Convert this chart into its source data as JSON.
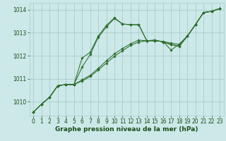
{
  "bg_color": "#cce8e8",
  "grid_color": "#aacccc",
  "line_color": "#2d6e2d",
  "marker_color": "#2d6e2d",
  "xlabel": "Graphe pression niveau de la mer (hPa)",
  "xlabel_color": "#1a4d1a",
  "xlabel_fontsize": 6.5,
  "tick_color": "#1a4d1a",
  "tick_fontsize": 5.5,
  "ylim": [
    1009.4,
    1014.3
  ],
  "xlim": [
    -0.5,
    23.5
  ],
  "yticks": [
    1010,
    1011,
    1012,
    1013,
    1014
  ],
  "xticks": [
    0,
    1,
    2,
    3,
    4,
    5,
    6,
    7,
    8,
    9,
    10,
    11,
    12,
    13,
    14,
    15,
    16,
    17,
    18,
    19,
    20,
    21,
    22,
    23
  ],
  "series": [
    {
      "x": [
        0,
        1,
        2,
        3,
        4,
        5,
        6,
        7,
        8,
        9,
        10,
        11,
        12,
        13,
        14,
        15,
        16,
        17,
        18,
        19,
        20,
        21,
        22,
        23
      ],
      "y": [
        1009.55,
        1009.9,
        1010.2,
        1010.7,
        1010.75,
        1010.75,
        1011.5,
        1012.05,
        1012.8,
        1013.25,
        1013.62,
        1013.38,
        1013.35,
        1013.35,
        1012.65,
        1012.65,
        1012.62,
        1012.25,
        1012.5,
        1012.85,
        1013.35,
        1013.88,
        1013.93,
        1014.05
      ]
    },
    {
      "x": [
        0,
        1,
        2,
        3,
        4,
        5,
        6,
        7,
        8,
        9,
        10,
        11,
        12,
        13,
        14,
        15,
        16,
        17,
        18,
        19,
        20,
        21,
        22,
        23
      ],
      "y": [
        1009.55,
        1009.9,
        1010.2,
        1010.7,
        1010.75,
        1010.75,
        1011.9,
        1012.15,
        1012.85,
        1013.32,
        1013.65,
        1013.38,
        1013.35,
        1013.35,
        1012.65,
        1012.65,
        1012.62,
        1012.55,
        1012.5,
        1012.85,
        1013.35,
        1013.88,
        1013.93,
        1014.05
      ]
    },
    {
      "x": [
        0,
        1,
        2,
        3,
        4,
        5,
        6,
        7,
        8,
        9,
        10,
        11,
        12,
        13,
        14,
        15,
        16,
        17,
        18,
        19,
        20,
        21,
        22,
        23
      ],
      "y": [
        1009.55,
        1009.9,
        1010.2,
        1010.7,
        1010.75,
        1010.75,
        1010.95,
        1011.15,
        1011.45,
        1011.78,
        1012.08,
        1012.32,
        1012.52,
        1012.68,
        1012.65,
        1012.68,
        1012.6,
        1012.5,
        1012.42,
        1012.85,
        1013.35,
        1013.88,
        1013.93,
        1014.05
      ]
    },
    {
      "x": [
        0,
        1,
        2,
        3,
        4,
        5,
        6,
        7,
        8,
        9,
        10,
        11,
        12,
        13,
        14,
        15,
        16,
        17,
        18,
        19,
        20,
        21,
        22,
        23
      ],
      "y": [
        1009.55,
        1009.9,
        1010.2,
        1010.7,
        1010.75,
        1010.75,
        1010.9,
        1011.1,
        1011.38,
        1011.68,
        1011.98,
        1012.22,
        1012.45,
        1012.6,
        1012.65,
        1012.68,
        1012.6,
        1012.48,
        1012.4,
        1012.85,
        1013.35,
        1013.88,
        1013.93,
        1014.05
      ]
    }
  ]
}
